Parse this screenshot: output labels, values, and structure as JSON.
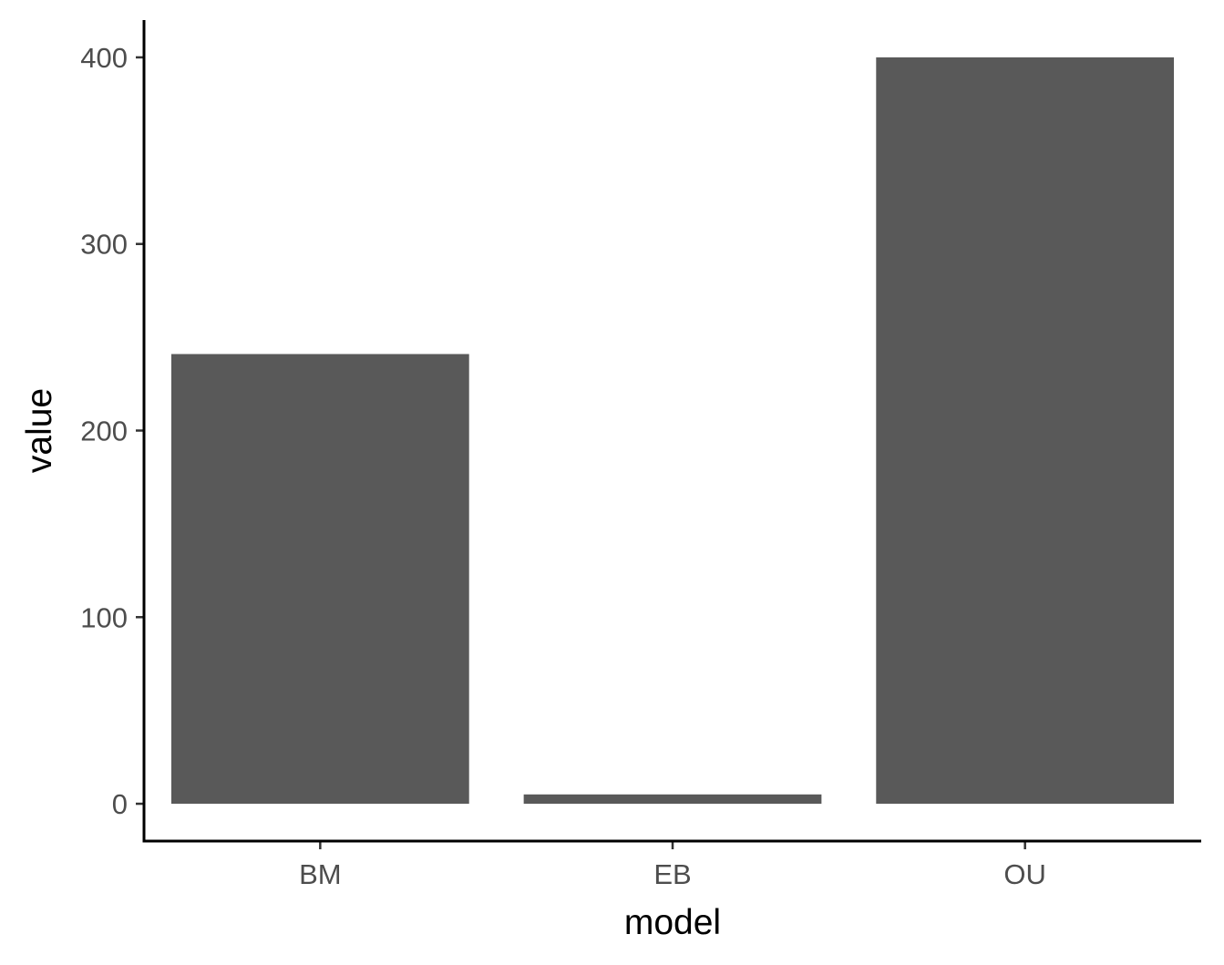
{
  "chart_data": {
    "type": "bar",
    "title": "",
    "xlabel": "model",
    "ylabel": "value",
    "categories": [
      "BM",
      "EB",
      "OU"
    ],
    "values": [
      241,
      5,
      400
    ],
    "ylim": [
      -20,
      420
    ],
    "yticks": [
      0,
      100,
      200,
      300,
      400
    ],
    "ytick_labels": [
      "0",
      "100",
      "200",
      "300",
      "400"
    ],
    "grid": false,
    "legend": "none",
    "colors": {
      "bar": "#595959",
      "axis": "#000000",
      "tick_label": "#4d4d4d"
    }
  }
}
